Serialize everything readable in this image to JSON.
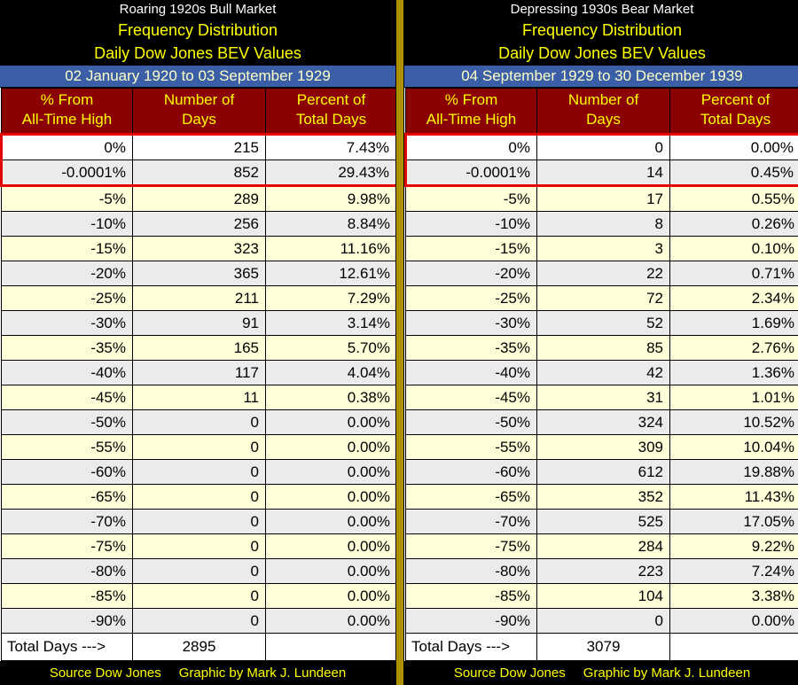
{
  "colors": {
    "background_black": "#000000",
    "title_text": "#FFFFFF",
    "yellow_text": "#FFFF00",
    "maroon_header": "#8B0000",
    "blue_date_bar": "#3A5FA6",
    "blue_bar_text": "#FFFFC8",
    "row_pale_yellow": "#FFFFD9",
    "row_light_gray": "#EBEBEB",
    "highlight_red_box": "#E60000",
    "gold_divider": "#B09200"
  },
  "panels": [
    {
      "title": "Roaring 1920s Bull Market",
      "subtitle1": "Frequency Distribution",
      "subtitle2": "Daily Dow Jones BEV Values",
      "date_range": "02 January 1920 to 03 September 1929",
      "columns": [
        {
          "line1": "% From",
          "line2": "All-Time High"
        },
        {
          "line1": "Number of",
          "line2": "Days"
        },
        {
          "line1": "Percent of",
          "line2": "Total Days"
        }
      ],
      "rows": [
        {
          "bev": "0%",
          "days": "215",
          "pct": "7.43%"
        },
        {
          "bev": "-0.0001%",
          "days": "852",
          "pct": "29.43%"
        },
        {
          "bev": "-5%",
          "days": "289",
          "pct": "9.98%"
        },
        {
          "bev": "-10%",
          "days": "256",
          "pct": "8.84%"
        },
        {
          "bev": "-15%",
          "days": "323",
          "pct": "11.16%"
        },
        {
          "bev": "-20%",
          "days": "365",
          "pct": "12.61%"
        },
        {
          "bev": "-25%",
          "days": "211",
          "pct": "7.29%"
        },
        {
          "bev": "-30%",
          "days": "91",
          "pct": "3.14%"
        },
        {
          "bev": "-35%",
          "days": "165",
          "pct": "5.70%"
        },
        {
          "bev": "-40%",
          "days": "117",
          "pct": "4.04%"
        },
        {
          "bev": "-45%",
          "days": "11",
          "pct": "0.38%"
        },
        {
          "bev": "-50%",
          "days": "0",
          "pct": "0.00%"
        },
        {
          "bev": "-55%",
          "days": "0",
          "pct": "0.00%"
        },
        {
          "bev": "-60%",
          "days": "0",
          "pct": "0.00%"
        },
        {
          "bev": "-65%",
          "days": "0",
          "pct": "0.00%"
        },
        {
          "bev": "-70%",
          "days": "0",
          "pct": "0.00%"
        },
        {
          "bev": "-75%",
          "days": "0",
          "pct": "0.00%"
        },
        {
          "bev": "-80%",
          "days": "0",
          "pct": "0.00%"
        },
        {
          "bev": "-85%",
          "days": "0",
          "pct": "0.00%"
        },
        {
          "bev": "-90%",
          "days": "0",
          "pct": "0.00%"
        }
      ],
      "total_label": "Total Days --->",
      "total_days": "2895",
      "footer_source": "Source Dow Jones",
      "footer_credit": "Graphic by Mark J. Lundeen"
    },
    {
      "title": "Depressing 1930s Bear Market",
      "subtitle1": "Frequency Distribution",
      "subtitle2": "Daily Dow Jones BEV Values",
      "date_range": "04 September 1929 to 30 December 1939",
      "columns": [
        {
          "line1": "% From",
          "line2": "All-Time High"
        },
        {
          "line1": "Number of",
          "line2": "Days"
        },
        {
          "line1": "Percent of",
          "line2": "Total Days"
        }
      ],
      "rows": [
        {
          "bev": "0%",
          "days": "0",
          "pct": "0.00%"
        },
        {
          "bev": "-0.0001%",
          "days": "14",
          "pct": "0.45%"
        },
        {
          "bev": "-5%",
          "days": "17",
          "pct": "0.55%"
        },
        {
          "bev": "-10%",
          "days": "8",
          "pct": "0.26%"
        },
        {
          "bev": "-15%",
          "days": "3",
          "pct": "0.10%"
        },
        {
          "bev": "-20%",
          "days": "22",
          "pct": "0.71%"
        },
        {
          "bev": "-25%",
          "days": "72",
          "pct": "2.34%"
        },
        {
          "bev": "-30%",
          "days": "52",
          "pct": "1.69%"
        },
        {
          "bev": "-35%",
          "days": "85",
          "pct": "2.76%"
        },
        {
          "bev": "-40%",
          "days": "42",
          "pct": "1.36%"
        },
        {
          "bev": "-45%",
          "days": "31",
          "pct": "1.01%"
        },
        {
          "bev": "-50%",
          "days": "324",
          "pct": "10.52%"
        },
        {
          "bev": "-55%",
          "days": "309",
          "pct": "10.04%"
        },
        {
          "bev": "-60%",
          "days": "612",
          "pct": "19.88%"
        },
        {
          "bev": "-65%",
          "days": "352",
          "pct": "11.43%"
        },
        {
          "bev": "-70%",
          "days": "525",
          "pct": "17.05%"
        },
        {
          "bev": "-75%",
          "days": "284",
          "pct": "9.22%"
        },
        {
          "bev": "-80%",
          "days": "223",
          "pct": "7.24%"
        },
        {
          "bev": "-85%",
          "days": "104",
          "pct": "3.38%"
        },
        {
          "bev": "-90%",
          "days": "0",
          "pct": "0.00%"
        }
      ],
      "total_label": "Total Days --->",
      "total_days": "3079",
      "footer_source": "Source Dow Jones",
      "footer_credit": "Graphic by Mark J. Lundeen"
    }
  ],
  "chart_data": [
    {
      "type": "table",
      "title": "Roaring 1920s Bull Market - Frequency Distribution - Daily Dow Jones BEV Values (02 January 1920 to 03 September 1929)",
      "columns": [
        "% From All-Time High",
        "Number of Days",
        "Percent of Total Days"
      ],
      "bev_levels": [
        "0%",
        "-0.0001%",
        "-5%",
        "-10%",
        "-15%",
        "-20%",
        "-25%",
        "-30%",
        "-35%",
        "-40%",
        "-45%",
        "-50%",
        "-55%",
        "-60%",
        "-65%",
        "-70%",
        "-75%",
        "-80%",
        "-85%",
        "-90%"
      ],
      "number_of_days": [
        215,
        852,
        289,
        256,
        323,
        365,
        211,
        91,
        165,
        117,
        11,
        0,
        0,
        0,
        0,
        0,
        0,
        0,
        0,
        0
      ],
      "percent_of_total_days": [
        7.43,
        29.43,
        9.98,
        8.84,
        11.16,
        12.61,
        7.29,
        3.14,
        5.7,
        4.04,
        0.38,
        0.0,
        0.0,
        0.0,
        0.0,
        0.0,
        0.0,
        0.0,
        0.0,
        0.0
      ],
      "total_days": 2895
    },
    {
      "type": "table",
      "title": "Depressing 1930s Bear Market - Frequency Distribution - Daily Dow Jones BEV Values (04 September 1929 to 30 December 1939)",
      "columns": [
        "% From All-Time High",
        "Number of Days",
        "Percent of Total Days"
      ],
      "bev_levels": [
        "0%",
        "-0.0001%",
        "-5%",
        "-10%",
        "-15%",
        "-20%",
        "-25%",
        "-30%",
        "-35%",
        "-40%",
        "-45%",
        "-50%",
        "-55%",
        "-60%",
        "-65%",
        "-70%",
        "-75%",
        "-80%",
        "-85%",
        "-90%"
      ],
      "number_of_days": [
        0,
        14,
        17,
        8,
        3,
        22,
        72,
        52,
        85,
        42,
        31,
        324,
        309,
        612,
        352,
        525,
        284,
        223,
        104,
        0
      ],
      "percent_of_total_days": [
        0.0,
        0.45,
        0.55,
        0.26,
        0.1,
        0.71,
        2.34,
        1.69,
        2.76,
        1.36,
        1.01,
        10.52,
        10.04,
        19.88,
        11.43,
        17.05,
        9.22,
        7.24,
        3.38,
        0.0
      ],
      "total_days": 3079
    }
  ]
}
